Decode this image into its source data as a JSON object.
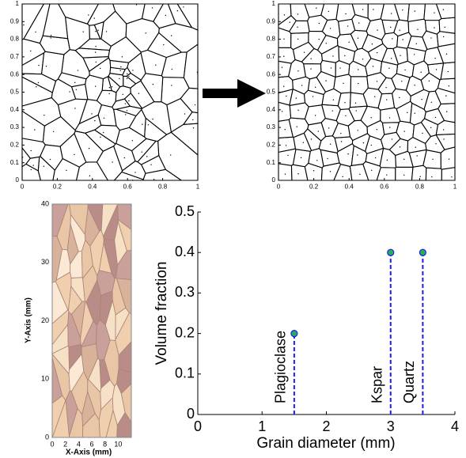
{
  "chart_data": [
    {
      "type": "voronoi",
      "xlim": [
        0,
        1
      ],
      "ylim": [
        0,
        1
      ],
      "xticks": [
        0,
        0.2,
        0.4,
        0.6,
        0.8,
        1
      ],
      "yticks": [
        0,
        0.1,
        0.2,
        0.3,
        0.4,
        0.5,
        0.6,
        0.7,
        0.8,
        0.9,
        1
      ]
    },
    {
      "type": "voronoi",
      "xlim": [
        0,
        1
      ],
      "ylim": [
        0,
        1
      ],
      "xticks": [
        0,
        0.2,
        0.4,
        0.6,
        0.8,
        1
      ],
      "yticks": [
        0,
        0.1,
        0.2,
        0.3,
        0.4,
        0.5,
        0.6,
        0.7,
        0.8,
        0.9,
        1
      ]
    },
    {
      "type": "grain-map",
      "xlabel": "X-Axis (mm)",
      "ylabel": "Y-Axis (mm)",
      "xlim": [
        0,
        12
      ],
      "ylim": [
        0,
        40
      ],
      "xticks": [
        0,
        2,
        4,
        6,
        8,
        10
      ],
      "yticks": [
        0,
        10,
        20,
        30,
        40
      ]
    },
    {
      "type": "stem",
      "xlabel": "Grain diameter (mm)",
      "ylabel": "Volume fraction",
      "xlim": [
        0,
        4
      ],
      "ylim": [
        0,
        0.5
      ],
      "xticks": [
        0,
        1,
        2,
        3,
        4
      ],
      "yticks": [
        0,
        0.1,
        0.2,
        0.3,
        0.4,
        0.5
      ],
      "x": [
        1.5,
        3,
        3.5
      ],
      "values": [
        0.2,
        0.4,
        0.4
      ],
      "labels": [
        "Plagioclase",
        "Kspar",
        "Quartz"
      ],
      "color": "#1a1aff",
      "marker_color": "#22b050"
    }
  ]
}
